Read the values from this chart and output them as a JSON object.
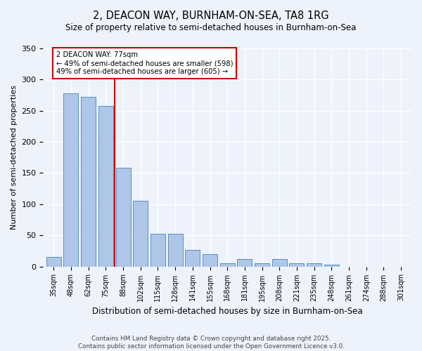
{
  "title": "2, DEACON WAY, BURNHAM-ON-SEA, TA8 1RG",
  "subtitle": "Size of property relative to semi-detached houses in Burnham-on-Sea",
  "xlabel": "Distribution of semi-detached houses by size in Burnham-on-Sea",
  "ylabel": "Number of semi-detached properties",
  "categories": [
    "35sqm",
    "48sqm",
    "62sqm",
    "75sqm",
    "88sqm",
    "102sqm",
    "115sqm",
    "128sqm",
    "141sqm",
    "155sqm",
    "168sqm",
    "181sqm",
    "195sqm",
    "208sqm",
    "221sqm",
    "235sqm",
    "248sqm",
    "261sqm",
    "274sqm",
    "288sqm",
    "301sqm"
  ],
  "values": [
    15,
    278,
    272,
    258,
    158,
    105,
    52,
    52,
    27,
    20,
    5,
    12,
    5,
    12,
    5,
    5,
    3,
    0,
    0,
    0,
    0
  ],
  "bar_color": "#aec6e8",
  "bar_edge_color": "#5a8fc2",
  "annotation_text_line1": "2 DEACON WAY: 77sqm",
  "annotation_text_line2": "← 49% of semi-detached houses are smaller (598)",
  "annotation_text_line3": "49% of semi-detached houses are larger (605) →",
  "red_line_color": "#cc0000",
  "background_color": "#eef2fb",
  "grid_color": "#ffffff",
  "ylim": [
    0,
    350
  ],
  "yticks": [
    0,
    50,
    100,
    150,
    200,
    250,
    300,
    350
  ],
  "footer_line1": "Contains HM Land Registry data © Crown copyright and database right 2025.",
  "footer_line2": "Contains public sector information licensed under the Open Government Licence v3.0."
}
